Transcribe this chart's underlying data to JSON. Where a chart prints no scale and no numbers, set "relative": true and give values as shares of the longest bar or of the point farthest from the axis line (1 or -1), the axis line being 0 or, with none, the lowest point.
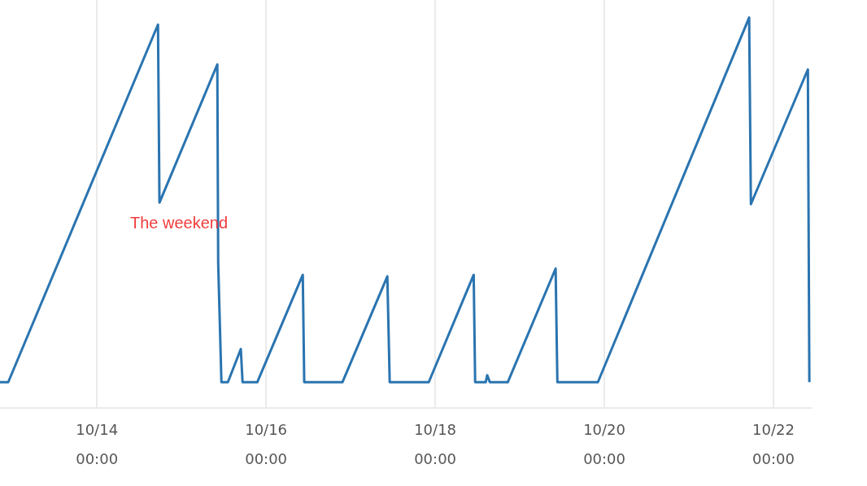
{
  "chart_data": {
    "type": "line",
    "relative": true,
    "grid": "x",
    "marker": "none",
    "line_style": "solid",
    "xlim": [
      "--10-12T20:30",
      "--10-22T10:50"
    ],
    "xticks": [
      {
        "value": "--10-14T00:00",
        "label": "10/14 00:00"
      },
      {
        "value": "--10-16T00:00",
        "label": "10/16 00:00"
      },
      {
        "value": "--10-18T00:00",
        "label": "10/18 00:00"
      },
      {
        "value": "--10-20T00:00",
        "label": "10/20 00:00"
      },
      {
        "value": "--10-22T00:00",
        "label": "10/22 00:00"
      }
    ],
    "annotations": [
      "The weekend"
    ],
    "series": [
      {
        "color": "#2a74b0",
        "x": [
          "--10-12T20:30",
          "--10-12T22:50",
          "--10-14T17:20",
          "--10-14T17:45",
          "--10-15T10:10",
          "--10-15T10:25",
          "--10-15T11:20",
          "--10-15T13:10",
          "--10-15T16:50",
          "--10-15T17:20",
          "--10-15T21:30",
          "--10-16T10:25",
          "--10-16T10:50",
          "--10-16T21:40",
          "--10-17T10:25",
          "--10-17T11:05",
          "--10-17T22:10",
          "--10-18T10:55",
          "--10-18T11:20",
          "--10-18T14:20",
          "--10-18T14:45",
          "--10-18T15:30",
          "--10-18T20:35",
          "--10-19T10:10",
          "--10-19T10:40",
          "--10-19T22:10",
          "--10-21T17:05",
          "--10-21T17:35",
          "--10-22T09:45",
          "--10-22T10:10"
        ],
        "values": [
          0.066,
          0.066,
          0.982,
          0.526,
          0.88,
          0.371,
          0.066,
          0.066,
          0.151,
          0.066,
          0.066,
          0.341,
          0.066,
          0.066,
          0.337,
          0.066,
          0.066,
          0.341,
          0.066,
          0.066,
          0.084,
          0.066,
          0.066,
          0.357,
          0.066,
          0.066,
          1,
          0.522,
          0.867,
          0.066
        ]
      }
    ]
  }
}
